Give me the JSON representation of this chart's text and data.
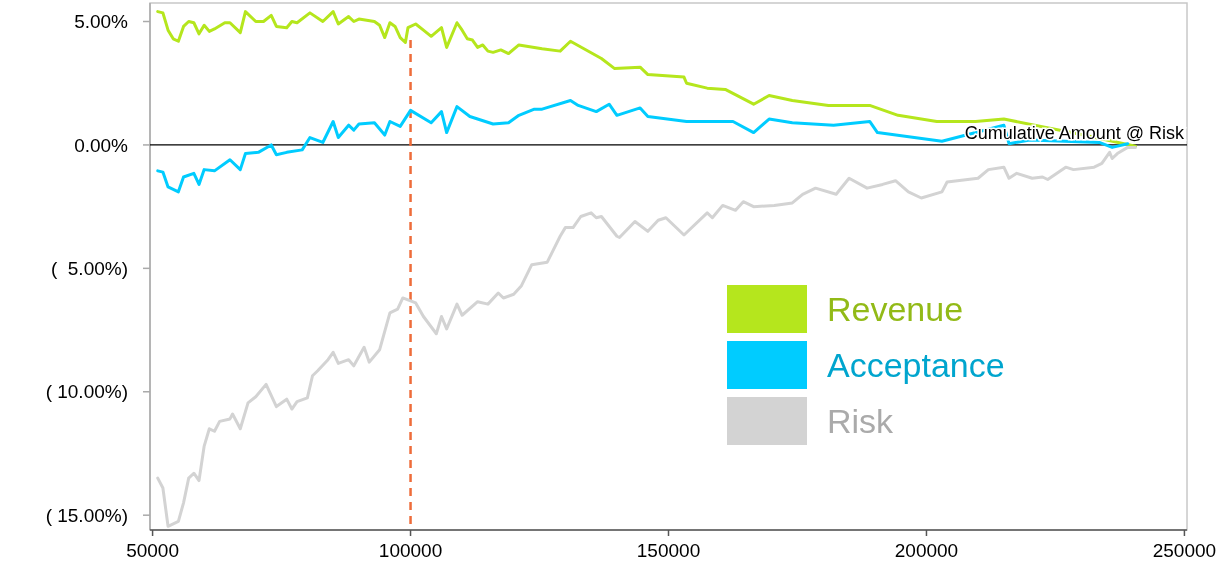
{
  "chart_data": {
    "type": "line",
    "xlim": [
      49500,
      250500
    ],
    "xticks": [
      50000,
      100000,
      150000,
      200000,
      250000
    ],
    "ylim": [
      -15.6,
      5.75
    ],
    "yticks": [
      {
        "value": 5,
        "label": "5.00%"
      },
      {
        "value": 0,
        "label": "0.00%"
      },
      {
        "value": -5,
        "label": "(  5.00%)"
      },
      {
        "value": -10,
        "label": "( 10.00%)"
      },
      {
        "value": -15,
        "label": "( 15.00%)"
      }
    ],
    "grid": false,
    "legend": "right",
    "marker": "none",
    "line_style": "solid",
    "ref_lines": [
      {
        "axis": "y",
        "value": 0,
        "label": "Cumulative Amount @ Risk",
        "color": "#000000",
        "line_style": "solid"
      },
      {
        "axis": "x",
        "value": 100000,
        "label": null,
        "color": "#ee6c3a",
        "line_style": "dashed"
      }
    ],
    "series": [
      {
        "name": "Revenue",
        "color": "#b5e61d",
        "x": [
          51000,
          52000,
          53000,
          54000,
          55000,
          56000,
          57000,
          58000,
          59000,
          60000,
          61000,
          62000,
          64000,
          65000,
          67000,
          68000,
          70000,
          71500,
          73000,
          74000,
          76000,
          77000,
          78000,
          80500,
          83000,
          85000,
          86000,
          88000,
          89000,
          90000,
          93000,
          94000,
          95000,
          96000,
          97000,
          98000,
          99000,
          99500,
          101000,
          102500,
          104000,
          106000,
          107000,
          109000,
          110000,
          111000,
          112000,
          113000,
          114000,
          115000,
          116000,
          117500,
          119000,
          121000,
          125500,
          129000,
          131000,
          137000,
          139500,
          144500,
          146000,
          153000,
          153500,
          157500,
          161000,
          166500,
          169500,
          174000,
          181000,
          189000,
          194500,
          202000,
          209500,
          215000,
          230500,
          240500
        ],
        "values": [
          5.4,
          5.35,
          4.65,
          4.3,
          4.2,
          4.8,
          5.0,
          4.95,
          4.5,
          4.85,
          4.6,
          4.7,
          4.95,
          4.95,
          4.55,
          5.4,
          5.0,
          5.0,
          5.25,
          4.8,
          4.75,
          5.0,
          4.95,
          5.35,
          5.0,
          5.4,
          4.9,
          5.2,
          5.0,
          5.1,
          5.0,
          4.85,
          4.35,
          4.95,
          4.8,
          4.35,
          4.15,
          4.75,
          4.9,
          4.65,
          4.4,
          4.75,
          3.95,
          4.95,
          4.65,
          4.3,
          4.25,
          3.95,
          4.05,
          3.8,
          3.75,
          3.85,
          3.7,
          4.05,
          3.9,
          3.8,
          4.2,
          3.5,
          3.1,
          3.15,
          2.85,
          2.75,
          2.5,
          2.3,
          2.25,
          1.65,
          2.0,
          1.8,
          1.6,
          1.6,
          1.2,
          0.95,
          0.95,
          1.05,
          0.4,
          -0.05
        ]
      },
      {
        "name": "Acceptance",
        "color": "#00ccff",
        "x": [
          51000,
          52000,
          53000,
          55000,
          56000,
          58000,
          59000,
          60000,
          62000,
          65000,
          67000,
          68000,
          70500,
          73000,
          74000,
          76000,
          79000,
          80500,
          83000,
          85000,
          86000,
          88000,
          89000,
          90000,
          93000,
          95000,
          96000,
          98000,
          100000,
          104000,
          106000,
          107000,
          109000,
          111500,
          116000,
          119000,
          121000,
          124000,
          125500,
          131000,
          132500,
          136000,
          138500,
          140000,
          144500,
          146000,
          153500,
          162500,
          166500,
          169500,
          174000,
          182000,
          189000,
          190500,
          203000,
          215000,
          216000,
          220000,
          233500,
          236000,
          239000
        ],
        "values": [
          -1.05,
          -1.1,
          -1.7,
          -1.9,
          -1.3,
          -1.15,
          -1.6,
          -1.0,
          -1.05,
          -0.6,
          -1.0,
          -0.35,
          -0.3,
          0,
          -0.4,
          -0.3,
          -0.2,
          0.3,
          0.1,
          0.95,
          0.3,
          0.8,
          0.6,
          0.85,
          0.9,
          0.4,
          0.95,
          0.75,
          1.4,
          0.9,
          1.35,
          0.5,
          1.55,
          1.15,
          0.85,
          0.9,
          1.2,
          1.45,
          1.45,
          1.8,
          1.6,
          1.35,
          1.65,
          1.2,
          1.5,
          1.15,
          0.95,
          0.95,
          0.5,
          1.05,
          0.9,
          0.8,
          0.95,
          0.5,
          0.15,
          0.8,
          0.05,
          0.2,
          0.1,
          -0.1,
          0.05
        ]
      },
      {
        "name": "Risk",
        "color": "#d3d3d3",
        "x": [
          51000,
          52000,
          53000,
          55000,
          56000,
          57000,
          58000,
          59000,
          60000,
          61000,
          62000,
          63000,
          65000,
          65500,
          67000,
          68500,
          70000,
          72000,
          74000,
          76000,
          77000,
          78000,
          80000,
          81000,
          82000,
          84000,
          85000,
          86000,
          88000,
          89000,
          91000,
          92000,
          94000,
          96000,
          97500,
          98500,
          101000,
          102500,
          105000,
          106000,
          107000,
          109000,
          110000,
          113000,
          115000,
          117000,
          118000,
          120000,
          121500,
          123500,
          126500,
          129000,
          130000,
          131500,
          133000,
          135000,
          136000,
          137000,
          140000,
          140500,
          143500,
          146000,
          148000,
          149500,
          153000,
          157500,
          158500,
          160500,
          163000,
          164500,
          166500,
          170500,
          174000,
          176000,
          178500,
          182500,
          185000,
          188500,
          191500,
          194000,
          196500,
          199000,
          203000,
          204000,
          210000,
          212000,
          215000,
          216000,
          217500,
          220500,
          222500,
          223500,
          227000,
          228500,
          232500,
          234000,
          235500,
          236000,
          237000,
          239000,
          240500
        ],
        "values": [
          -13.5,
          -13.9,
          -15.45,
          -15.25,
          -14.5,
          -13.5,
          -13.3,
          -13.6,
          -12.2,
          -11.5,
          -11.6,
          -11.2,
          -11.1,
          -10.9,
          -11.5,
          -10.45,
          -10.2,
          -9.7,
          -10.6,
          -10.3,
          -10.7,
          -10.4,
          -10.25,
          -9.35,
          -9.15,
          -8.7,
          -8.4,
          -8.85,
          -8.7,
          -8.95,
          -8.2,
          -8.8,
          -8.3,
          -6.8,
          -6.65,
          -6.2,
          -6.4,
          -6.95,
          -7.65,
          -6.95,
          -7.45,
          -6.45,
          -6.9,
          -6.35,
          -6.45,
          -6.0,
          -6.2,
          -6.05,
          -5.7,
          -4.85,
          -4.75,
          -3.7,
          -3.35,
          -3.35,
          -2.9,
          -2.75,
          -2.95,
          -2.9,
          -3.7,
          -3.75,
          -3.1,
          -3.5,
          -3.05,
          -2.95,
          -3.65,
          -2.75,
          -2.95,
          -2.45,
          -2.65,
          -2.3,
          -2.5,
          -2.45,
          -2.35,
          -2.0,
          -1.75,
          -2.0,
          -1.35,
          -1.75,
          -1.6,
          -1.45,
          -1.9,
          -2.15,
          -1.9,
          -1.5,
          -1.35,
          -1.0,
          -0.9,
          -1.35,
          -1.15,
          -1.35,
          -1.3,
          -1.4,
          -0.9,
          -1.0,
          -0.9,
          -0.75,
          -0.3,
          -0.55,
          -0.35,
          -0.1,
          -0.1
        ]
      }
    ]
  }
}
